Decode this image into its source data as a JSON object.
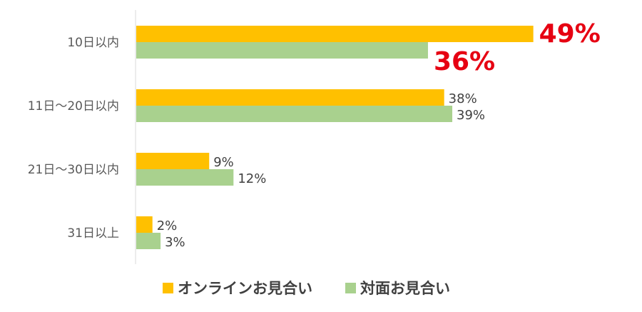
{
  "chart_data": {
    "type": "bar",
    "orientation": "horizontal",
    "categories": [
      "10日以内",
      "11日～20日以内",
      "21日～30日以内",
      "31日以上"
    ],
    "series": [
      {
        "name": "オンラインお見合い",
        "values": [
          49,
          38,
          9,
          2
        ],
        "color": "#FFC000"
      },
      {
        "name": "対面お見合い",
        "values": [
          36,
          39,
          12,
          3
        ],
        "color": "#A9D18E"
      }
    ],
    "value_labels": [
      [
        "49%",
        "38%",
        "9%",
        "2%"
      ],
      [
        "36%",
        "39%",
        "12%",
        "3%"
      ]
    ],
    "highlight_category_index": 0,
    "highlight_color": "#E60012",
    "xlim": [
      0,
      50
    ],
    "grid": false,
    "legend": "bottom"
  }
}
